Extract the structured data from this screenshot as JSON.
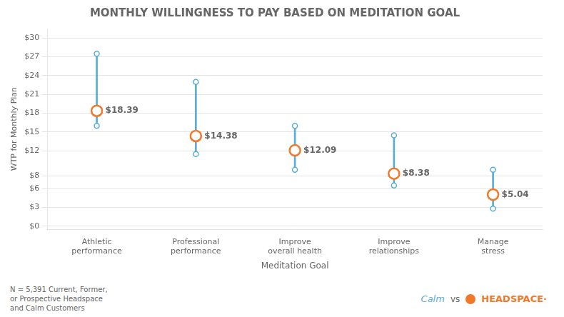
{
  "chart_data": {
    "type": "range",
    "title": "MONTHLY WILLINGNESS TO PAY BASED ON MEDITATION GOAL",
    "xlabel": "Meditation Goal",
    "ylabel": "WTP for Monthly Plan",
    "categories": [
      "Athletic\nperformance",
      "Professional\nperformance",
      "Improve\noverall health",
      "Improve\nrelationships",
      "Manage\nstress"
    ],
    "series": [
      {
        "name": "Calm",
        "color": "#5BADD4",
        "type": "range",
        "marker": "circle",
        "low": [
          16.0,
          11.5,
          9.0,
          6.5,
          2.8
        ],
        "high": [
          27.5,
          23.0,
          16.0,
          14.5,
          9.0
        ]
      },
      {
        "name": "HEADSPACE·",
        "color": "#F07828",
        "type": "dot",
        "marker": "circle",
        "values": [
          18.39,
          14.38,
          12.09,
          8.38,
          5.04
        ],
        "value_labels": [
          "$18.39",
          "$14.38",
          "$12.09",
          "$8.38",
          "$5.04"
        ]
      }
    ],
    "ylim": [
      -0.5,
      31.5
    ],
    "yticks": [
      {
        "value": 0,
        "label": "$0"
      },
      {
        "value": 3,
        "label": "$3"
      },
      {
        "value": 6,
        "label": "$6"
      },
      {
        "value": 8,
        "label": "$8"
      },
      {
        "value": 12,
        "label": "$12"
      },
      {
        "value": 15,
        "label": "$15"
      },
      {
        "value": 18,
        "label": "$18"
      },
      {
        "value": 21,
        "label": "$21"
      },
      {
        "value": 24,
        "label": "$24"
      },
      {
        "value": 27,
        "label": "$27"
      },
      {
        "value": 30,
        "label": "$30"
      }
    ],
    "grid": "y",
    "legend": "lower right",
    "legend_joiner": "vs",
    "data_labels": true,
    "annotations": [
      "N = 5,391 Current, Former,\nor Prospective Headspace\nand Calm Customers"
    ]
  }
}
